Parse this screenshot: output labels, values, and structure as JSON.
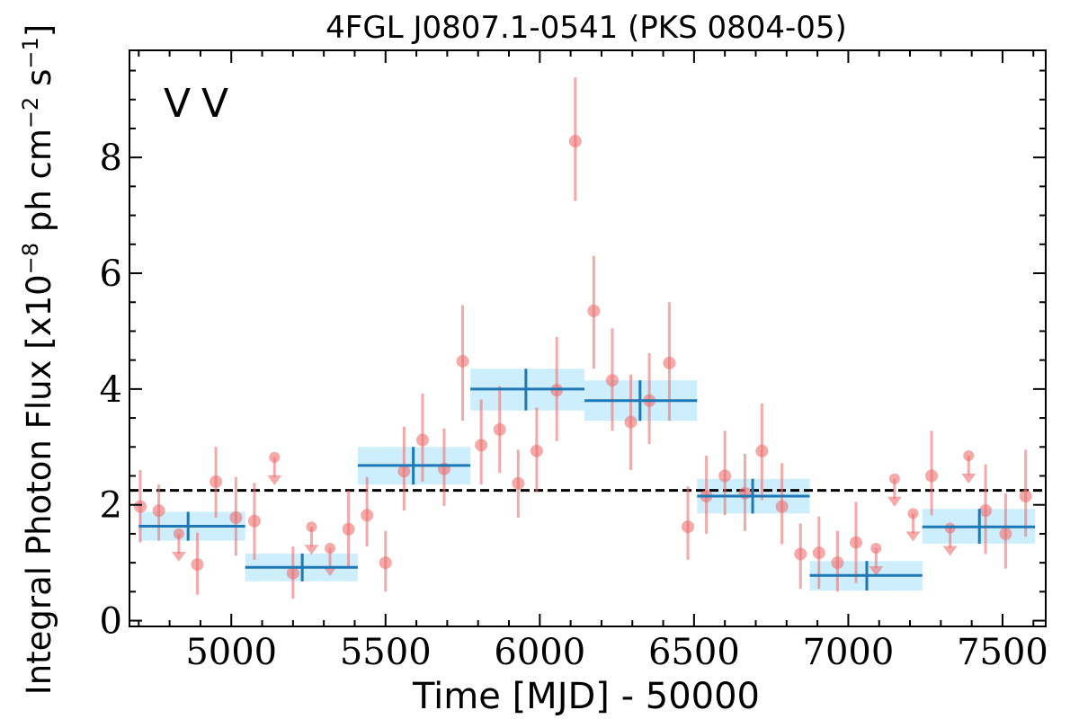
{
  "chart_data": {
    "type": "scatter",
    "title": "4FGL J0807.1-0541 (PKS 0804-05)",
    "xlabel": "Time [MJD] - 50000",
    "ylabel_parts": {
      "prefix": "Integral Photon Flux [x10",
      "exp1": "−8",
      "mid": " ph cm",
      "exp2": "−2",
      "s": " s",
      "exp3": "−1",
      "suffix": "]"
    },
    "xlim": [
      4670,
      7640
    ],
    "ylim": [
      -0.1,
      9.85
    ],
    "x_ticks": [
      5000,
      5500,
      6000,
      6500,
      7000,
      7500
    ],
    "x_tick_labels": [
      "5000",
      "5500",
      "6000",
      "6500",
      "7000",
      "7500"
    ],
    "y_ticks": [
      0,
      2,
      4,
      6,
      8
    ],
    "y_tick_labels": [
      "0",
      "2",
      "4",
      "6",
      "8"
    ],
    "grid": false,
    "legend": {
      "placement": "top-left",
      "entries": [
        {
          "label": "V",
          "color": "#1f77b4"
        },
        {
          "label": "V",
          "color": "#d62728"
        }
      ]
    },
    "mean_flux": 2.25,
    "colors": {
      "detection": "#ef6f6f",
      "binned_line": "#1f77b4",
      "binned_band": "#cdeefc",
      "mean_line": "#000000"
    },
    "series": [
      {
        "kind": "detections",
        "points": [
          {
            "x": 4705,
            "y": 1.97,
            "ylo": 1.35,
            "yhi": 2.6
          },
          {
            "x": 4765,
            "y": 1.9,
            "ylo": 1.38,
            "yhi": 2.35
          },
          {
            "x": 4890,
            "y": 0.97,
            "ylo": 0.45,
            "yhi": 1.52
          },
          {
            "x": 4950,
            "y": 2.4,
            "ylo": 1.78,
            "yhi": 3.0
          },
          {
            "x": 5015,
            "y": 1.78,
            "ylo": 1.12,
            "yhi": 2.48
          },
          {
            "x": 5075,
            "y": 1.72,
            "ylo": 1.05,
            "yhi": 2.38
          },
          {
            "x": 5200,
            "y": 0.82,
            "ylo": 0.38,
            "yhi": 1.28
          },
          {
            "x": 5380,
            "y": 1.58,
            "ylo": 0.9,
            "yhi": 2.25
          },
          {
            "x": 5440,
            "y": 1.82,
            "ylo": 1.28,
            "yhi": 2.48
          },
          {
            "x": 5500,
            "y": 1.0,
            "ylo": 0.5,
            "yhi": 1.55
          },
          {
            "x": 5560,
            "y": 2.58,
            "ylo": 1.9,
            "yhi": 3.35
          },
          {
            "x": 5620,
            "y": 3.12,
            "ylo": 2.4,
            "yhi": 3.92
          },
          {
            "x": 5690,
            "y": 2.62,
            "ylo": 1.98,
            "yhi": 3.32
          },
          {
            "x": 5750,
            "y": 4.48,
            "ylo": 3.45,
            "yhi": 5.45
          },
          {
            "x": 5810,
            "y": 3.03,
            "ylo": 2.35,
            "yhi": 3.82
          },
          {
            "x": 5870,
            "y": 3.3,
            "ylo": 2.55,
            "yhi": 4.05
          },
          {
            "x": 5930,
            "y": 2.37,
            "ylo": 1.78,
            "yhi": 2.95
          },
          {
            "x": 5990,
            "y": 2.93,
            "ylo": 2.22,
            "yhi": 3.68
          },
          {
            "x": 6055,
            "y": 3.98,
            "ylo": 3.1,
            "yhi": 4.9
          },
          {
            "x": 6115,
            "y": 8.28,
            "ylo": 7.25,
            "yhi": 9.38
          },
          {
            "x": 6175,
            "y": 5.35,
            "ylo": 4.35,
            "yhi": 6.3
          },
          {
            "x": 6235,
            "y": 4.15,
            "ylo": 3.28,
            "yhi": 5.05
          },
          {
            "x": 6295,
            "y": 3.43,
            "ylo": 2.6,
            "yhi": 4.25
          },
          {
            "x": 6355,
            "y": 3.8,
            "ylo": 3.05,
            "yhi": 4.62
          },
          {
            "x": 6420,
            "y": 4.45,
            "ylo": 3.45,
            "yhi": 5.5
          },
          {
            "x": 6480,
            "y": 1.62,
            "ylo": 1.05,
            "yhi": 2.32
          },
          {
            "x": 6540,
            "y": 2.15,
            "ylo": 1.5,
            "yhi": 2.85
          },
          {
            "x": 6600,
            "y": 2.5,
            "ylo": 1.82,
            "yhi": 3.28
          },
          {
            "x": 6665,
            "y": 2.2,
            "ylo": 1.55,
            "yhi": 2.88
          },
          {
            "x": 6720,
            "y": 2.93,
            "ylo": 2.08,
            "yhi": 3.75
          },
          {
            "x": 6785,
            "y": 1.97,
            "ylo": 1.32,
            "yhi": 2.72
          },
          {
            "x": 6845,
            "y": 1.15,
            "ylo": 0.55,
            "yhi": 1.68
          },
          {
            "x": 6905,
            "y": 1.17,
            "ylo": 0.55,
            "yhi": 1.8
          },
          {
            "x": 6965,
            "y": 1.0,
            "ylo": 0.5,
            "yhi": 1.55
          },
          {
            "x": 7025,
            "y": 1.35,
            "ylo": 0.65,
            "yhi": 2.05
          },
          {
            "x": 7270,
            "y": 2.5,
            "ylo": 1.82,
            "yhi": 3.28
          },
          {
            "x": 7445,
            "y": 1.9,
            "ylo": 1.15,
            "yhi": 2.7
          },
          {
            "x": 7510,
            "y": 1.5,
            "ylo": 0.9,
            "yhi": 2.2
          },
          {
            "x": 7575,
            "y": 2.15,
            "ylo": 1.45,
            "yhi": 2.95
          }
        ]
      },
      {
        "kind": "upper_limits",
        "points": [
          {
            "x": 4830,
            "y": 1.5
          },
          {
            "x": 5140,
            "y": 2.82
          },
          {
            "x": 5260,
            "y": 1.62
          },
          {
            "x": 5320,
            "y": 1.25
          },
          {
            "x": 7090,
            "y": 1.25
          },
          {
            "x": 7150,
            "y": 2.45
          },
          {
            "x": 7210,
            "y": 1.85
          },
          {
            "x": 7330,
            "y": 1.6
          },
          {
            "x": 7390,
            "y": 2.85
          }
        ]
      },
      {
        "kind": "binned",
        "bins": [
          {
            "x0": 4700,
            "x1": 5045,
            "center": 4860,
            "y": 1.63,
            "ylo": 1.38,
            "yhi": 1.88
          },
          {
            "x0": 5045,
            "x1": 5410,
            "center": 5230,
            "y": 0.92,
            "ylo": 0.68,
            "yhi": 1.16
          },
          {
            "x0": 5410,
            "x1": 5775,
            "center": 5590,
            "y": 2.68,
            "ylo": 2.35,
            "yhi": 3.0
          },
          {
            "x0": 5775,
            "x1": 6145,
            "center": 5955,
            "y": 4.0,
            "ylo": 3.63,
            "yhi": 4.35
          },
          {
            "x0": 6145,
            "x1": 6510,
            "center": 6325,
            "y": 3.8,
            "ylo": 3.45,
            "yhi": 4.15
          },
          {
            "x0": 6510,
            "x1": 6875,
            "center": 6690,
            "y": 2.15,
            "ylo": 1.85,
            "yhi": 2.45
          },
          {
            "x0": 6875,
            "x1": 7240,
            "center": 7060,
            "y": 0.78,
            "ylo": 0.52,
            "yhi": 1.03
          },
          {
            "x0": 7240,
            "x1": 7605,
            "center": 7425,
            "y": 1.62,
            "ylo": 1.33,
            "yhi": 1.93
          }
        ]
      }
    ]
  }
}
